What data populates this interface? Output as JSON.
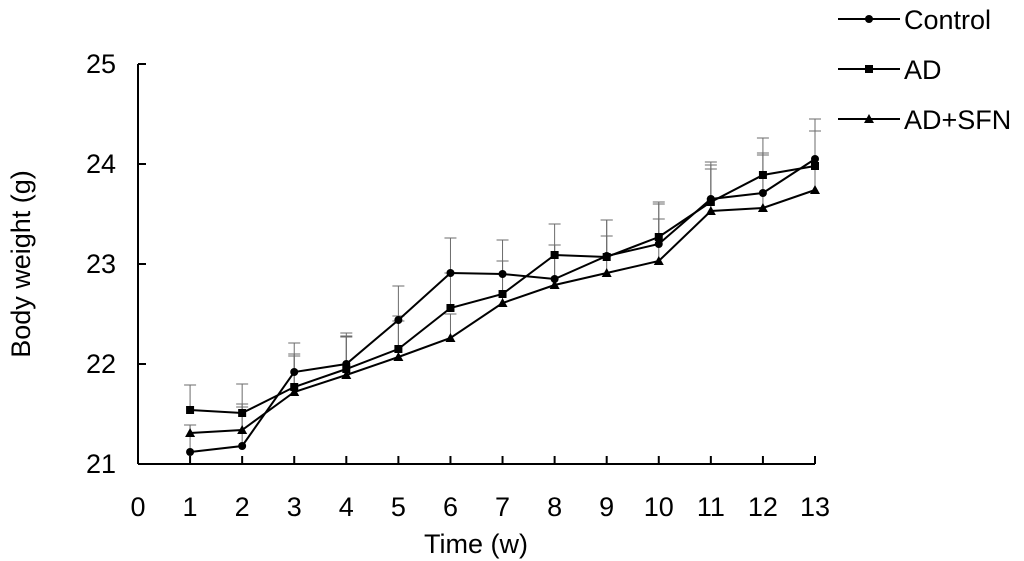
{
  "chart_data": {
    "type": "line",
    "title": "",
    "xlabel": "Time (w)",
    "ylabel": "Body weight (g)",
    "xlim": [
      0,
      13
    ],
    "ylim": [
      21,
      25
    ],
    "x_ticks": [
      "0",
      "1",
      "2",
      "3",
      "4",
      "5",
      "6",
      "7",
      "8",
      "9",
      "10",
      "11",
      "12",
      "13"
    ],
    "y_ticks": [
      "21",
      "22",
      "23",
      "24",
      "25"
    ],
    "grid": false,
    "legend_position": "top-right",
    "series": [
      {
        "name": "Control",
        "marker": "circle",
        "x": [
          1,
          2,
          3,
          4,
          5,
          6,
          7,
          8,
          9,
          10,
          11,
          12,
          13
        ],
        "y": [
          21.12,
          21.18,
          21.92,
          22.0,
          22.44,
          22.91,
          22.9,
          22.85,
          23.08,
          23.2,
          23.65,
          23.71,
          24.05
        ],
        "error": [
          0.27,
          0.42,
          0.29,
          0.31,
          0.34,
          0.35,
          0.34,
          0.34,
          0.36,
          0.4,
          0.37,
          0.38,
          0.4
        ]
      },
      {
        "name": "AD",
        "marker": "square",
        "x": [
          1,
          2,
          3,
          4,
          5,
          6,
          7,
          8,
          9,
          10,
          11,
          12,
          13
        ],
        "y": [
          21.54,
          21.51,
          21.77,
          21.95,
          22.15,
          22.56,
          22.7,
          23.09,
          23.07,
          23.27,
          23.62,
          23.89,
          23.98
        ],
        "error": [
          0.25,
          0.29,
          0.31,
          0.33,
          0.33,
          0.35,
          0.33,
          0.31,
          0.37,
          0.35,
          0.37,
          0.37,
          0.35
        ]
      },
      {
        "name": "AD+SFN",
        "marker": "triangle",
        "x": [
          1,
          2,
          3,
          4,
          5,
          6,
          7,
          8,
          9,
          10,
          11,
          12,
          13
        ],
        "y": [
          21.31,
          21.34,
          21.72,
          21.89,
          22.07,
          22.26,
          22.61,
          22.79,
          22.91,
          23.03,
          23.53,
          23.56,
          23.74
        ],
        "error": [
          0.08,
          0.23,
          0.38,
          0.38,
          0.36,
          0.24,
          0.42,
          0.4,
          0.37,
          0.42,
          0.42,
          0.55,
          0.59
        ]
      }
    ]
  }
}
